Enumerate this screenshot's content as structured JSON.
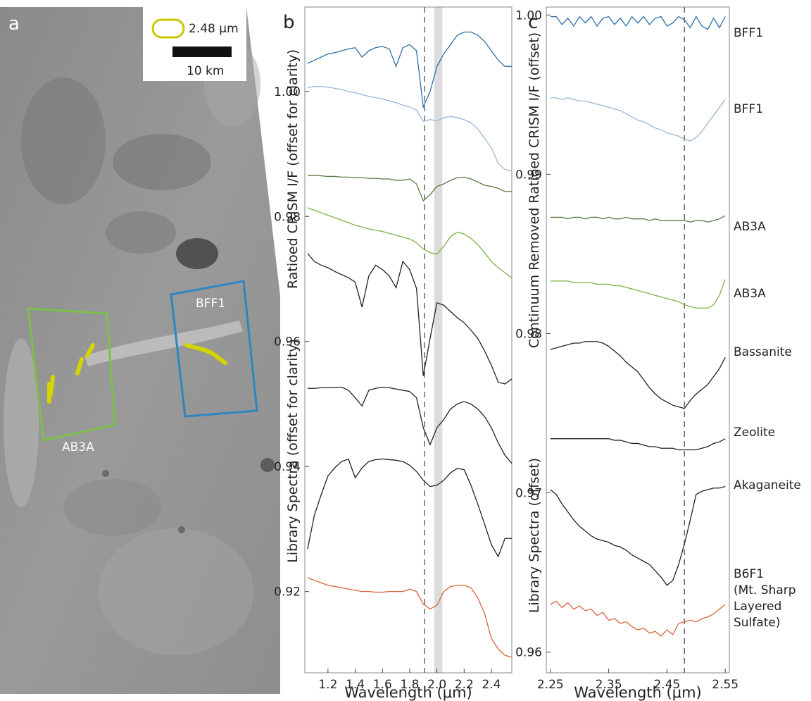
{
  "map_panel": {
    "letter": "a",
    "legend_label": "2.48 μm",
    "scale_label": "10 km",
    "regions": [
      "BFF1",
      "AB3A"
    ]
  },
  "chart_data": [
    {
      "type": "line",
      "panel": "b",
      "xlabel": "Wavelength (μm)",
      "ylabels": [
        "Ratioed CRISM I/F (offset for clarity)",
        "Library Spectra (offset for clarity)"
      ],
      "xlim": [
        1.03,
        2.55
      ],
      "ylim": [
        0.907,
        1.0135
      ],
      "xticks": [
        1.2,
        1.4,
        1.6,
        1.8,
        {
          "value": 2,
          "label": "2.0"
        },
        2.2,
        2.4
      ],
      "yticks": [
        0.92,
        0.94,
        0.96,
        0.98,
        {
          "value": 1,
          "label": "1.00"
        }
      ],
      "vline": 1.91,
      "band": [
        1.98,
        2.04
      ],
      "x": [
        1.05,
        1.1,
        1.15,
        1.2,
        1.25,
        1.3,
        1.35,
        1.4,
        1.45,
        1.5,
        1.55,
        1.6,
        1.65,
        1.7,
        1.75,
        1.8,
        1.85,
        1.9,
        1.95,
        2.0,
        2.05,
        2.1,
        2.15,
        2.2,
        2.25,
        2.3,
        2.35,
        2.4,
        2.45,
        2.5,
        2.55
      ],
      "series": [
        {
          "color": "#2f6fa8",
          "values": [
            1.0045,
            1.005,
            1.0055,
            1.006,
            1.0062,
            1.0065,
            1.0068,
            1.007,
            1.0055,
            1.0065,
            1.007,
            1.0072,
            1.0068,
            1.004,
            1.007,
            1.0075,
            1.0065,
            0.9975,
            1.0,
            1.004,
            1.006,
            1.0075,
            1.009,
            1.0095,
            1.0095,
            1.009,
            1.008,
            1.0065,
            1.005,
            1.004,
            1.004
          ]
        },
        {
          "color": "#9ab7d6",
          "values": [
            1.0006,
            1.0008,
            1.0008,
            1.0007,
            1.0005,
            1.0003,
            1.0,
            0.9998,
            0.9995,
            0.9992,
            0.999,
            0.9988,
            0.9985,
            0.9982,
            0.9978,
            0.9975,
            0.997,
            0.9952,
            0.9955,
            0.9953,
            0.9958,
            0.996,
            0.9958,
            0.9955,
            0.995,
            0.994,
            0.9925,
            0.991,
            0.9885,
            0.9875,
            0.9873
          ]
        },
        {
          "color": "#5a7a40",
          "values": [
            0.9865,
            0.9866,
            0.9865,
            0.9864,
            0.9864,
            0.9863,
            0.9863,
            0.9862,
            0.9862,
            0.9861,
            0.9861,
            0.986,
            0.986,
            0.9858,
            0.9858,
            0.986,
            0.9852,
            0.9825,
            0.9835,
            0.9848,
            0.9852,
            0.9858,
            0.9862,
            0.9863,
            0.986,
            0.9855,
            0.985,
            0.9848,
            0.9845,
            0.984,
            0.984
          ]
        },
        {
          "color": "#7cb342",
          "values": [
            0.9814,
            0.981,
            0.9806,
            0.9802,
            0.9798,
            0.9794,
            0.979,
            0.9786,
            0.9783,
            0.978,
            0.9778,
            0.9776,
            0.9773,
            0.977,
            0.9767,
            0.9764,
            0.9758,
            0.9748,
            0.9742,
            0.974,
            0.9752,
            0.9768,
            0.9775,
            0.9772,
            0.9765,
            0.9755,
            0.9742,
            0.9728,
            0.9718,
            0.971,
            0.9702
          ]
        },
        {
          "color": "#222222",
          "values": [
            0.9741,
            0.9728,
            0.9722,
            0.9718,
            0.9712,
            0.9707,
            0.9702,
            0.9695,
            0.9655,
            0.9705,
            0.9722,
            0.9715,
            0.9705,
            0.9686,
            0.9728,
            0.9715,
            0.9685,
            0.9545,
            0.9605,
            0.9662,
            0.9658,
            0.9648,
            0.9638,
            0.963,
            0.9618,
            0.9605,
            0.9585,
            0.9562,
            0.9535,
            0.9532,
            0.954
          ]
        },
        {
          "color": "#222222",
          "values": [
            0.9525,
            0.9525,
            0.9526,
            0.9526,
            0.9526,
            0.9527,
            0.9522,
            0.951,
            0.9497,
            0.9522,
            0.9525,
            0.9527,
            0.9526,
            0.9524,
            0.9522,
            0.952,
            0.951,
            0.9462,
            0.9435,
            0.9462,
            0.9475,
            0.9492,
            0.95,
            0.9504,
            0.95,
            0.9492,
            0.948,
            0.9462,
            0.9438,
            0.9418,
            0.9405
          ]
        },
        {
          "color": "#222222",
          "values": [
            0.9268,
            0.9322,
            0.9355,
            0.9385,
            0.9398,
            0.9408,
            0.9412,
            0.9382,
            0.9398,
            0.9408,
            0.9411,
            0.9412,
            0.9411,
            0.941,
            0.9408,
            0.9402,
            0.9392,
            0.9378,
            0.9368,
            0.937,
            0.9378,
            0.939,
            0.9397,
            0.9395,
            0.937,
            0.934,
            0.9308,
            0.9275,
            0.9256,
            0.9285,
            0.9285
          ]
        },
        {
          "color": "#d9653b",
          "values": [
            0.9222,
            0.9218,
            0.9214,
            0.921,
            0.9208,
            0.9206,
            0.9204,
            0.9202,
            0.92,
            0.92,
            0.9199,
            0.9199,
            0.92,
            0.92,
            0.92,
            0.9204,
            0.92,
            0.918,
            0.9172,
            0.9178,
            0.92,
            0.9208,
            0.921,
            0.921,
            0.9206,
            0.919,
            0.9165,
            0.9125,
            0.9108,
            0.9098,
            0.9095
          ]
        }
      ]
    },
    {
      "type": "line",
      "panel": "c",
      "xlabel": "Wavelength (μm)",
      "ylabels": [
        "Continuum Removed Ratioed CRISM I/F (offset)",
        "Library Spectra (offset)"
      ],
      "xlim": [
        2.243,
        2.557
      ],
      "ylim": [
        0.9587,
        1.0005
      ],
      "xticks": [
        2.25,
        2.35,
        2.45,
        2.55
      ],
      "yticks": [
        0.96,
        0.97,
        0.98,
        0.99,
        {
          "value": 1,
          "label": "1.00"
        }
      ],
      "vline": 2.48,
      "x": [
        2.25,
        2.26,
        2.27,
        2.28,
        2.29,
        2.3,
        2.31,
        2.32,
        2.33,
        2.34,
        2.35,
        2.36,
        2.37,
        2.38,
        2.39,
        2.4,
        2.41,
        2.42,
        2.43,
        2.44,
        2.45,
        2.46,
        2.47,
        2.48,
        2.49,
        2.5,
        2.51,
        2.52,
        2.53,
        2.54,
        2.55
      ],
      "series": [
        {
          "name": "BFF1",
          "color": "#2f6fa8",
          "values": [
            0.9999,
            0.9999,
            0.9994,
            0.9998,
            0.9993,
            0.9999,
            0.9995,
            0.9999,
            0.9993,
            0.9998,
            0.9999,
            0.9994,
            0.9998,
            0.9993,
            0.9999,
            0.9995,
            0.9999,
            0.9994,
            0.9998,
            0.9999,
            0.9993,
            0.9995,
            0.9999,
            0.9997,
            0.9992,
            0.9999,
            0.9993,
            0.9991,
            0.9998,
            0.9992,
            0.9999
          ]
        },
        {
          "name": "BFF1",
          "color": "#9ab7d6",
          "values": [
            0.9948,
            0.9948,
            0.9947,
            0.9948,
            0.9947,
            0.9946,
            0.9946,
            0.9945,
            0.9944,
            0.9943,
            0.9942,
            0.9941,
            0.994,
            0.9938,
            0.9936,
            0.9934,
            0.9933,
            0.9931,
            0.9929,
            0.9928,
            0.9926,
            0.9925,
            0.9924,
            0.9922,
            0.9921,
            0.9923,
            0.9927,
            0.9932,
            0.9937,
            0.9942,
            0.9947
          ]
        },
        {
          "name": "AB3A",
          "color": "#5a7a40",
          "values": [
            0.9873,
            0.9873,
            0.9873,
            0.9872,
            0.9873,
            0.9873,
            0.9872,
            0.9873,
            0.9873,
            0.9872,
            0.9873,
            0.9872,
            0.9872,
            0.9873,
            0.9872,
            0.9872,
            0.9872,
            0.9871,
            0.9872,
            0.9871,
            0.9871,
            0.9871,
            0.9871,
            0.9871,
            0.987,
            0.9871,
            0.9871,
            0.987,
            0.9871,
            0.9872,
            0.9874
          ]
        },
        {
          "name": "AB3A",
          "color": "#7cb342",
          "values": [
            0.9833,
            0.9833,
            0.9833,
            0.9833,
            0.9832,
            0.9832,
            0.9832,
            0.9832,
            0.9831,
            0.9831,
            0.9831,
            0.983,
            0.983,
            0.9829,
            0.9828,
            0.9827,
            0.9826,
            0.9825,
            0.9824,
            0.9823,
            0.9822,
            0.9821,
            0.982,
            0.9818,
            0.9817,
            0.9816,
            0.9816,
            0.9816,
            0.9818,
            0.9824,
            0.9834
          ]
        },
        {
          "name": "Bassanite",
          "color": "#222222",
          "values": [
            0.979,
            0.9791,
            0.9792,
            0.9793,
            0.9794,
            0.9794,
            0.9795,
            0.9795,
            0.9795,
            0.9794,
            0.9792,
            0.9789,
            0.9786,
            0.9782,
            0.9779,
            0.9776,
            0.9771,
            0.9766,
            0.9762,
            0.9759,
            0.9757,
            0.9755,
            0.9754,
            0.9753,
            0.9758,
            0.9762,
            0.9765,
            0.9768,
            0.9773,
            0.9778,
            0.9785
          ]
        },
        {
          "name": "Zeolite",
          "color": "#222222",
          "values": [
            0.9734,
            0.9734,
            0.9734,
            0.9734,
            0.9734,
            0.9734,
            0.9734,
            0.9734,
            0.9734,
            0.9734,
            0.9734,
            0.9733,
            0.9733,
            0.9732,
            0.9731,
            0.9731,
            0.973,
            0.9729,
            0.9729,
            0.9728,
            0.9728,
            0.9728,
            0.9727,
            0.9727,
            0.9727,
            0.9727,
            0.9728,
            0.9729,
            0.9731,
            0.9732,
            0.9734
          ]
        },
        {
          "name": "Akaganeite",
          "color": "#222222",
          "values": [
            0.9702,
            0.9699,
            0.9693,
            0.9688,
            0.9683,
            0.9679,
            0.9676,
            0.9673,
            0.9671,
            0.967,
            0.9669,
            0.9667,
            0.9666,
            0.9664,
            0.9661,
            0.9659,
            0.9657,
            0.9655,
            0.9651,
            0.9647,
            0.9642,
            0.9645,
            0.9655,
            0.9668,
            0.9683,
            0.9699,
            0.9701,
            0.9702,
            0.9703,
            0.9703,
            0.9704
          ]
        },
        {
          "name": "B6F1\n(Mt. Sharp\nLayered\nSulfate)",
          "color": "#d9653b",
          "values": [
            0.963,
            0.9632,
            0.9628,
            0.9631,
            0.9627,
            0.9629,
            0.9626,
            0.9627,
            0.9623,
            0.9625,
            0.962,
            0.9621,
            0.9618,
            0.9619,
            0.9616,
            0.9614,
            0.9615,
            0.9612,
            0.9613,
            0.961,
            0.9614,
            0.9611,
            0.9618,
            0.9619,
            0.962,
            0.9619,
            0.9621,
            0.9622,
            0.9624,
            0.9627,
            0.963
          ]
        }
      ]
    }
  ]
}
